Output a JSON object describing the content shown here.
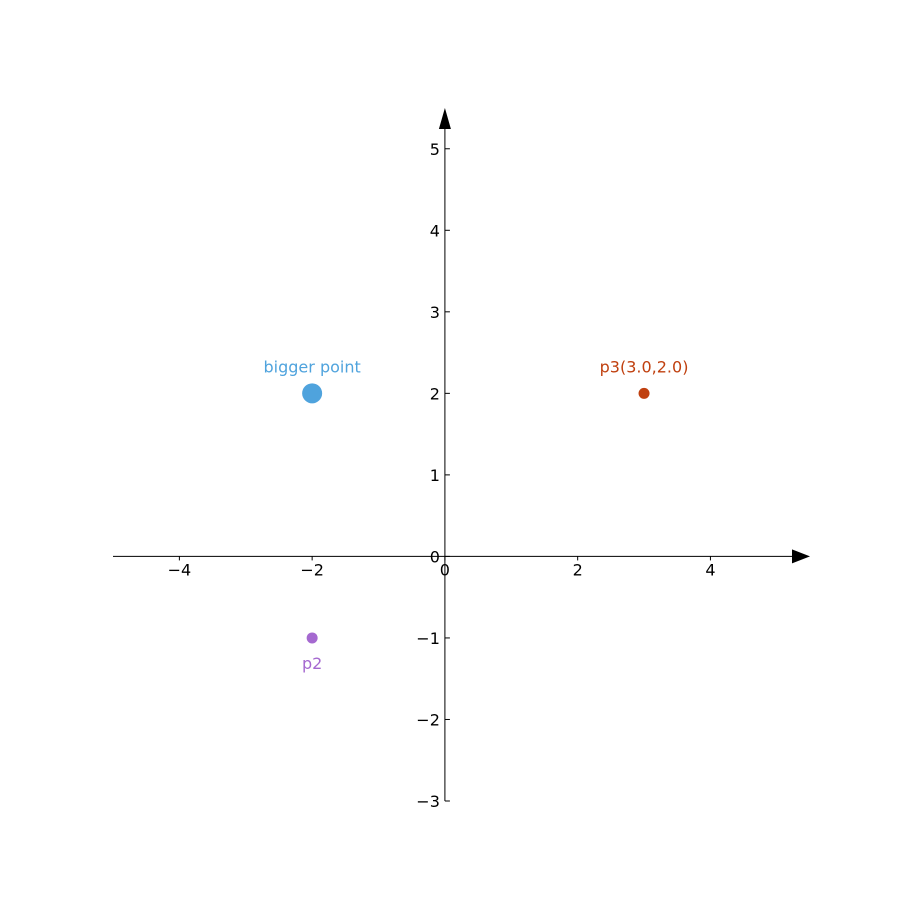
{
  "chart_data": {
    "type": "scatter",
    "xlim": [
      -5,
      5.5
    ],
    "ylim": [
      -3,
      5.5
    ],
    "grid": false,
    "axes_style": "centered arrows",
    "x_ticks": [
      -4,
      -2,
      0,
      2,
      4
    ],
    "x_tick_labels": [
      "−4",
      "−2",
      "0",
      "2",
      "4"
    ],
    "y_ticks": [
      -3,
      -2,
      -1,
      0,
      1,
      2,
      3,
      4,
      5
    ],
    "y_tick_labels": [
      "−3",
      "−2",
      "−1",
      "0",
      "1",
      "2",
      "3",
      "4",
      "5"
    ],
    "points": [
      {
        "label": "bigger point",
        "x": -2,
        "y": 2,
        "color": "#4fa3dd",
        "size": "large",
        "label_position": "above"
      },
      {
        "label": "p2",
        "x": -2,
        "y": -1,
        "color": "#a569d0",
        "size": "small",
        "label_position": "below"
      },
      {
        "label": "p3(3.0,2.0)",
        "x": 3,
        "y": 2,
        "color": "#c0400f",
        "size": "small",
        "label_position": "above"
      }
    ]
  }
}
